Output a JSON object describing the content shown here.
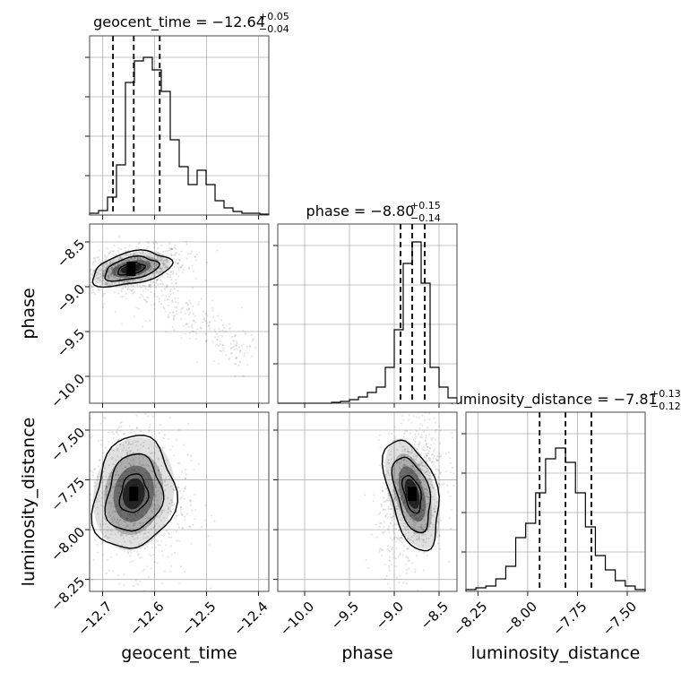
{
  "chart_data": {
    "type": "corner",
    "parameters": [
      {
        "name": "geocent_time",
        "axis_label": "geocent_time",
        "title_name": "geocent_time",
        "title_median": "−12.64",
        "title_plus": "+0.05",
        "title_minus": "−0.04",
        "range": [
          -12.725,
          -12.38
        ],
        "ticks": [
          -12.7,
          -12.6,
          -12.5,
          -12.4
        ],
        "tick_labels": [
          "−12.7",
          "−12.6",
          "−12.5",
          "−12.4"
        ],
        "quantiles": [
          -12.68,
          -12.64,
          -12.59
        ],
        "hist": [
          0.01,
          0.025,
          0.1,
          0.28,
          0.74,
          0.86,
          0.88,
          0.81,
          0.69,
          0.42,
          0.27,
          0.17,
          0.25,
          0.17,
          0.08,
          0.04,
          0.02,
          0.01,
          0.01,
          0.005
        ]
      },
      {
        "name": "phase",
        "axis_label": "phase",
        "title_name": "phase",
        "title_median": "−8.80",
        "title_plus": "+0.15",
        "title_minus": "−0.14",
        "range": [
          -10.3,
          -8.3
        ],
        "ticks": [
          -10.0,
          -9.5,
          -9.0,
          -8.5
        ],
        "tick_labels": [
          "−10.0",
          "−9.5",
          "−9.0",
          "−8.5"
        ],
        "quantiles": [
          -8.93,
          -8.8,
          -8.66
        ],
        "hist": [
          0.0,
          0.0,
          0.0,
          0.0,
          0.0,
          0.0,
          0.005,
          0.01,
          0.02,
          0.035,
          0.06,
          0.09,
          0.2,
          0.41,
          0.78,
          0.9,
          0.67,
          0.2,
          0.09,
          0.03
        ]
      },
      {
        "name": "luminosity_distance",
        "axis_label": "luminosity_distance",
        "title_name": "luminosity_distance",
        "title_median": "−7.81",
        "title_plus": "+0.13",
        "title_minus": "−0.12",
        "range": [
          -8.31,
          -7.41
        ],
        "ticks": [
          -8.25,
          -8.0,
          -7.75,
          -7.5
        ],
        "tick_labels": [
          "−8.25",
          "−8.00",
          "−7.75",
          "−7.50"
        ],
        "quantiles": [
          -7.94,
          -7.81,
          -7.68
        ],
        "hist": [
          0.01,
          0.02,
          0.03,
          0.07,
          0.14,
          0.3,
          0.38,
          0.55,
          0.74,
          0.8,
          0.72,
          0.55,
          0.36,
          0.2,
          0.12,
          0.06,
          0.03,
          0.01
        ]
      }
    ],
    "correlations": [
      {
        "x": "geocent_time",
        "y": "phase",
        "center": [
          -12.645,
          -8.8
        ],
        "spread": [
          0.035,
          0.08
        ],
        "rho": 0.3
      },
      {
        "x": "geocent_time",
        "y": "luminosity_distance",
        "center": [
          -12.64,
          -7.82
        ],
        "spread": [
          0.035,
          0.13
        ],
        "rho": -0.1
      },
      {
        "x": "phase",
        "y": "luminosity_distance",
        "center": [
          -8.8,
          -7.82
        ],
        "spread": [
          0.12,
          0.13
        ],
        "rho": 0.3
      }
    ]
  }
}
